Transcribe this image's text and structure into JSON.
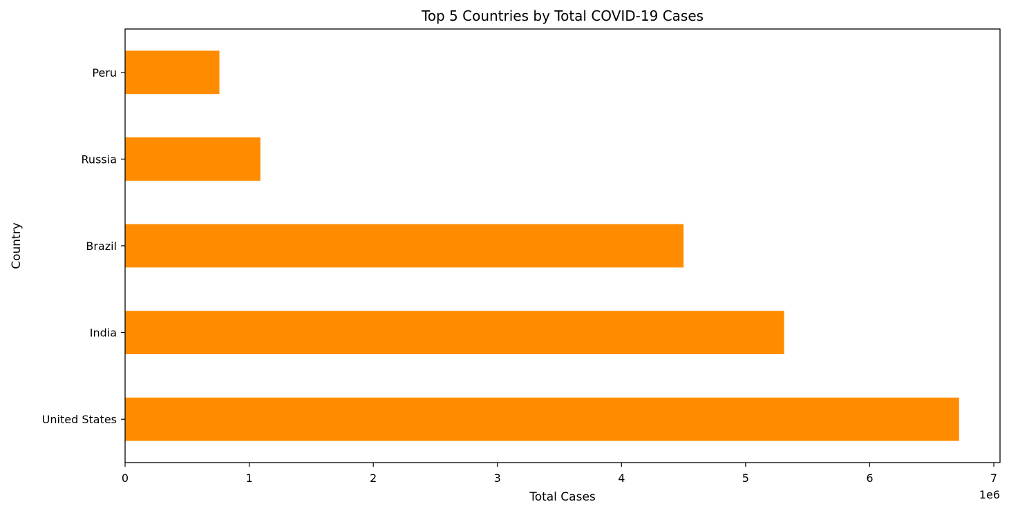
{
  "chart_data": {
    "type": "bar",
    "orientation": "horizontal",
    "title": "Top 5 Countries by Total COVID-19 Cases",
    "xlabel": "Total Cases",
    "ylabel": "Country",
    "x_offset_label": "1e6",
    "x_scale": 1000000,
    "xlim": [
      0,
      7.05
    ],
    "x_ticks": [
      0,
      1,
      2,
      3,
      4,
      5,
      6,
      7
    ],
    "x_tick_labels": [
      "0",
      "1",
      "2",
      "3",
      "4",
      "5",
      "6",
      "7"
    ],
    "categories": [
      "United States",
      "India",
      "Brazil",
      "Russia",
      "Peru"
    ],
    "values": [
      6720000,
      5310000,
      4500000,
      1090000,
      760000
    ],
    "bar_color": "#ff8c00",
    "grid": false,
    "legend": "none"
  }
}
